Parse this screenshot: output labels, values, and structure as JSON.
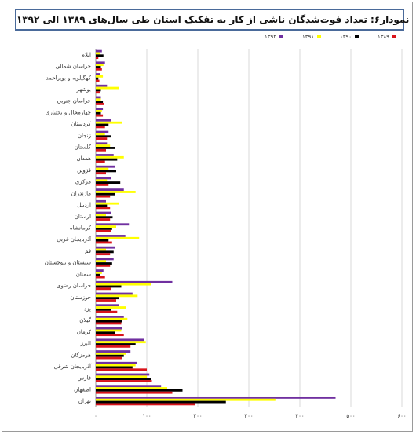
{
  "chart_data": {
    "type": "bar",
    "orientation": "horizontal",
    "title": "نمودار۶: تعداد فوت‌شدگان ناشی از کار به تفکیک استان طی سال‌های ۱۳۸۹ الی ۱۳۹۲",
    "categories": [
      "ایلام",
      "خراسان شمالی",
      "کهگیلویه و بویراحمد",
      "بوشهر",
      "خراسان جنوبی",
      "چهارمحال و بختیاری",
      "کردستان",
      "زنجان",
      "گلستان",
      "همدان",
      "قزوین",
      "مرکزی",
      "مازندران",
      "اردبیل",
      "لرستان",
      "کرمانشاه",
      "آذربایجان غربی",
      "قم",
      "سیستان و بلوچستان",
      "سمنان",
      "خراسان رضوی",
      "خوزستان",
      "یزد",
      "گیلان",
      "کرمان",
      "البرز",
      "هرمزگان",
      "آذربایجان شرقی",
      "فارس",
      "اصفهان",
      "تهران"
    ],
    "series": [
      {
        "name": "۱۳۹۲",
        "color": "#7030a0",
        "values": [
          12,
          18,
          8,
          22,
          10,
          14,
          30,
          25,
          22,
          35,
          38,
          30,
          55,
          20,
          30,
          65,
          58,
          38,
          35,
          15,
          150,
          72,
          45,
          55,
          52,
          95,
          68,
          80,
          105,
          128,
          470
        ]
      },
      {
        "name": "۱۳۹۱",
        "color": "#ffff00",
        "values": [
          8,
          15,
          14,
          45,
          10,
          12,
          52,
          18,
          28,
          55,
          25,
          22,
          78,
          45,
          20,
          40,
          85,
          20,
          20,
          12,
          108,
          82,
          60,
          62,
          50,
          98,
          60,
          78,
          100,
          140,
          352
        ]
      },
      {
        "name": "۱۳۹۰",
        "color": "#000000",
        "values": [
          15,
          10,
          5,
          10,
          14,
          10,
          25,
          30,
          38,
          42,
          40,
          48,
          38,
          22,
          33,
          32,
          25,
          35,
          32,
          8,
          50,
          45,
          30,
          52,
          38,
          78,
          55,
          72,
          108,
          170,
          255
        ]
      },
      {
        "name": "۱۳۸۹",
        "color": "#d9141b",
        "values": [
          5,
          12,
          7,
          8,
          16,
          14,
          18,
          22,
          20,
          18,
          20,
          25,
          28,
          28,
          28,
          30,
          32,
          28,
          28,
          18,
          30,
          40,
          42,
          50,
          55,
          68,
          52,
          100,
          110,
          150,
          195
        ]
      }
    ],
    "xlim": [
      0,
      600
    ],
    "xticks": [
      "۰",
      "۱۰۰",
      "۲۰۰",
      "۳۰۰",
      "۴۰۰",
      "۵۰۰",
      "۶۰۰"
    ],
    "grid": true,
    "legend_position": "top"
  }
}
